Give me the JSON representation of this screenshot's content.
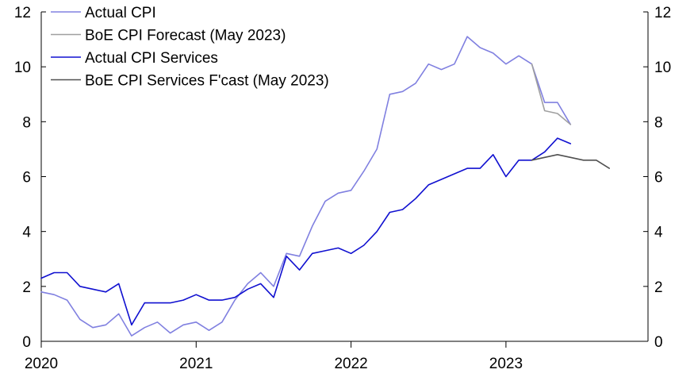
{
  "chart_data": {
    "type": "line",
    "title": "",
    "xlabel": "",
    "ylabel": "",
    "x_ticks": [
      "2020",
      "2021",
      "2022",
      "2023"
    ],
    "x_range": [
      2020.0,
      2023.917
    ],
    "ylim": [
      0,
      12
    ],
    "y_ticks": [
      "0",
      "2",
      "4",
      "6",
      "8",
      "10",
      "12"
    ],
    "y_ticks_right": [
      "0",
      "2",
      "4",
      "6",
      "8",
      "10",
      "12"
    ],
    "grid": false,
    "legend_position": "top-left",
    "series": [
      {
        "name": "Actual CPI",
        "color": "#8080e0",
        "width": 1.6,
        "points": [
          [
            2020.0,
            1.8
          ],
          [
            2020.083,
            1.7
          ],
          [
            2020.167,
            1.5
          ],
          [
            2020.25,
            0.8
          ],
          [
            2020.333,
            0.5
          ],
          [
            2020.417,
            0.6
          ],
          [
            2020.5,
            1.0
          ],
          [
            2020.583,
            0.2
          ],
          [
            2020.667,
            0.5
          ],
          [
            2020.75,
            0.7
          ],
          [
            2020.833,
            0.3
          ],
          [
            2020.917,
            0.6
          ],
          [
            2021.0,
            0.7
          ],
          [
            2021.083,
            0.4
          ],
          [
            2021.167,
            0.7
          ],
          [
            2021.25,
            1.5
          ],
          [
            2021.333,
            2.1
          ],
          [
            2021.417,
            2.5
          ],
          [
            2021.5,
            2.0
          ],
          [
            2021.583,
            3.2
          ],
          [
            2021.667,
            3.1
          ],
          [
            2021.75,
            4.2
          ],
          [
            2021.833,
            5.1
          ],
          [
            2021.917,
            5.4
          ],
          [
            2022.0,
            5.5
          ],
          [
            2022.083,
            6.2
          ],
          [
            2022.167,
            7.0
          ],
          [
            2022.25,
            9.0
          ],
          [
            2022.333,
            9.1
          ],
          [
            2022.417,
            9.4
          ],
          [
            2022.5,
            10.1
          ],
          [
            2022.583,
            9.9
          ],
          [
            2022.667,
            10.1
          ],
          [
            2022.75,
            11.1
          ],
          [
            2022.833,
            10.7
          ],
          [
            2022.917,
            10.5
          ],
          [
            2023.0,
            10.1
          ],
          [
            2023.083,
            10.4
          ],
          [
            2023.167,
            10.1
          ],
          [
            2023.25,
            8.7
          ],
          [
            2023.333,
            8.7
          ],
          [
            2023.417,
            7.9
          ]
        ]
      },
      {
        "name": "BoE CPI Forecast (May 2023)",
        "color": "#a0a0a0",
        "width": 1.6,
        "points": [
          [
            2023.167,
            10.1
          ],
          [
            2023.25,
            8.4
          ],
          [
            2023.333,
            8.3
          ],
          [
            2023.417,
            7.9
          ]
        ]
      },
      {
        "name": "Actual CPI Services",
        "color": "#1010d0",
        "width": 1.6,
        "points": [
          [
            2020.0,
            2.3
          ],
          [
            2020.083,
            2.5
          ],
          [
            2020.167,
            2.5
          ],
          [
            2020.25,
            2.0
          ],
          [
            2020.333,
            1.9
          ],
          [
            2020.417,
            1.8
          ],
          [
            2020.5,
            2.1
          ],
          [
            2020.583,
            0.6
          ],
          [
            2020.667,
            1.4
          ],
          [
            2020.75,
            1.4
          ],
          [
            2020.833,
            1.4
          ],
          [
            2020.917,
            1.5
          ],
          [
            2021.0,
            1.7
          ],
          [
            2021.083,
            1.5
          ],
          [
            2021.167,
            1.5
          ],
          [
            2021.25,
            1.6
          ],
          [
            2021.333,
            1.9
          ],
          [
            2021.417,
            2.1
          ],
          [
            2021.5,
            1.6
          ],
          [
            2021.583,
            3.1
          ],
          [
            2021.667,
            2.6
          ],
          [
            2021.75,
            3.2
          ],
          [
            2021.833,
            3.3
          ],
          [
            2021.917,
            3.4
          ],
          [
            2022.0,
            3.2
          ],
          [
            2022.083,
            3.5
          ],
          [
            2022.167,
            4.0
          ],
          [
            2022.25,
            4.7
          ],
          [
            2022.333,
            4.8
          ],
          [
            2022.417,
            5.2
          ],
          [
            2022.5,
            5.7
          ],
          [
            2022.583,
            5.9
          ],
          [
            2022.667,
            6.1
          ],
          [
            2022.75,
            6.3
          ],
          [
            2022.833,
            6.3
          ],
          [
            2022.917,
            6.8
          ],
          [
            2023.0,
            6.0
          ],
          [
            2023.083,
            6.6
          ],
          [
            2023.167,
            6.6
          ],
          [
            2023.25,
            6.9
          ],
          [
            2023.333,
            7.4
          ],
          [
            2023.417,
            7.2
          ]
        ]
      },
      {
        "name": "BoE CPI Services F'cast (May 2023)",
        "color": "#505050",
        "width": 1.6,
        "points": [
          [
            2023.167,
            6.6
          ],
          [
            2023.25,
            6.7
          ],
          [
            2023.333,
            6.8
          ],
          [
            2023.417,
            6.7
          ],
          [
            2023.5,
            6.6
          ],
          [
            2023.583,
            6.6
          ],
          [
            2023.667,
            6.3
          ]
        ]
      }
    ]
  }
}
